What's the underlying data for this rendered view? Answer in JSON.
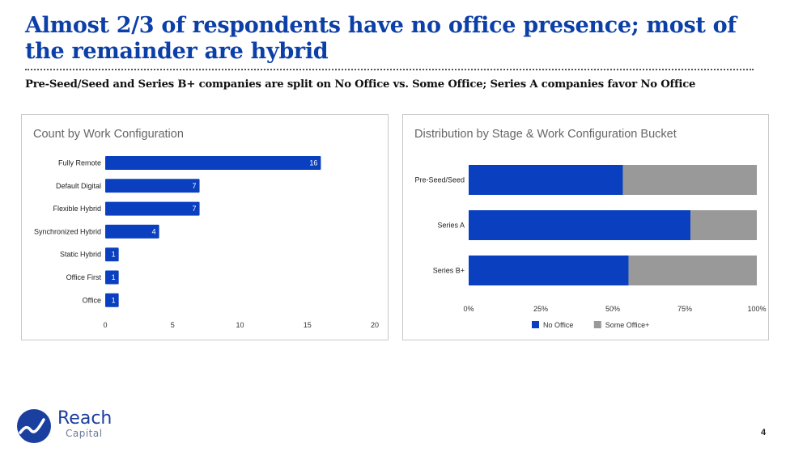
{
  "slide": {
    "title": "Almost 2/3 of respondents have no office presence; most of the remainder are hybrid",
    "subtitle": "Pre-Seed/Seed and Series B+ companies are split on No Office vs. Some Office; Series A companies favor No Office",
    "page_number": "4",
    "brand": {
      "name": "Reach",
      "tagline": "Capital",
      "color": "#1b3f9e"
    }
  },
  "chart_data": [
    {
      "type": "bar",
      "orientation": "horizontal",
      "title": "Count by Work Configuration",
      "categories": [
        "Fully Remote",
        "Default Digital",
        "Flexible Hybrid",
        "Synchronized Hybrid",
        "Static Hybrid",
        "Office First",
        "Office"
      ],
      "values": [
        16,
        7,
        7,
        4,
        1,
        1,
        1
      ],
      "data_labels": [
        "16",
        "7",
        "7",
        "4",
        "1",
        "1",
        "1"
      ],
      "xlabel": "",
      "ylabel": "",
      "xlim": [
        0,
        20
      ],
      "x_ticks": [
        0,
        5,
        10,
        15,
        20
      ],
      "x_tick_labels": [
        "0",
        "5",
        "10",
        "15",
        "20"
      ],
      "color": "#0a3fbf",
      "grid": false,
      "legend": "none"
    },
    {
      "type": "bar",
      "orientation": "horizontal",
      "stacked": "percent",
      "title": "Distribution by Stage & Work Configuration Bucket",
      "categories": [
        "Pre-Seed/Seed",
        "Series A",
        "Series B+"
      ],
      "series": [
        {
          "name": "No Office",
          "values": [
            53.5,
            77,
            55.5
          ],
          "color": "#0a3fbf"
        },
        {
          "name": "Some Office+",
          "values": [
            46.5,
            23,
            44.5
          ],
          "color": "#999999"
        }
      ],
      "xlabel": "",
      "ylabel": "",
      "xlim": [
        0,
        100
      ],
      "x_ticks": [
        0,
        25,
        50,
        75,
        100
      ],
      "x_tick_labels": [
        "0%",
        "25%",
        "50%",
        "75%",
        "100%"
      ],
      "grid": false,
      "legend": "bottom"
    }
  ]
}
